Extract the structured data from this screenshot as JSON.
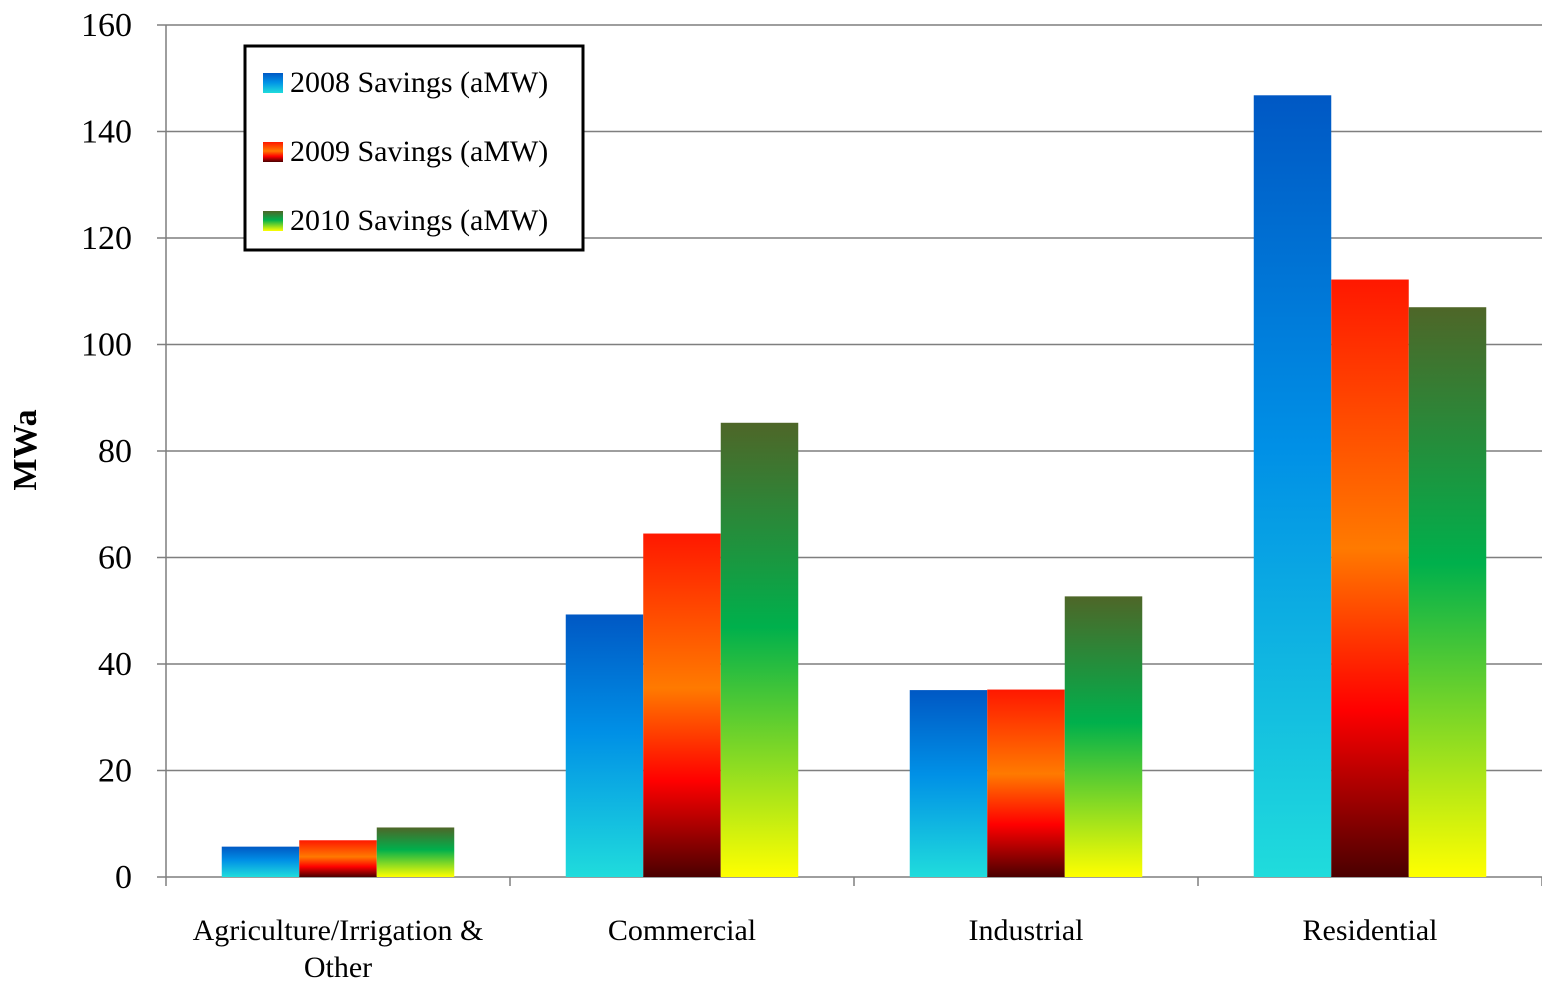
{
  "chart_data": {
    "type": "bar",
    "title": "",
    "xlabel": "",
    "ylabel": "MWa",
    "ylim": [
      0,
      160
    ],
    "yticks": [
      "0",
      "20",
      "40",
      "60",
      "80",
      "100",
      "120",
      "140",
      "160"
    ],
    "categories": [
      [
        "Agriculture/Irrigation &",
        "Other"
      ],
      [
        "Commercial"
      ],
      [
        "Industrial"
      ],
      [
        "Residential"
      ]
    ],
    "series": [
      {
        "name": "2008 Savings (aMW)",
        "values": [
          5.7,
          49.3,
          35.1,
          146.8
        ]
      },
      {
        "name": "2009 Savings (aMW)",
        "values": [
          6.9,
          64.5,
          35.2,
          112.2
        ]
      },
      {
        "name": "2010 Savings (aMW)",
        "values": [
          9.3,
          85.3,
          52.7,
          107.0
        ]
      }
    ],
    "grid": true,
    "legend": "top-left",
    "colors": {
      "2008": [
        "#0055c0",
        "#0088e0",
        "#20d8d8"
      ],
      "2009": [
        "#ff1a00",
        "#ff7a00",
        "#ff0000",
        "#500000"
      ],
      "2010": [
        "#4a6a2a",
        "#00b050",
        "#ffff00"
      ]
    }
  }
}
